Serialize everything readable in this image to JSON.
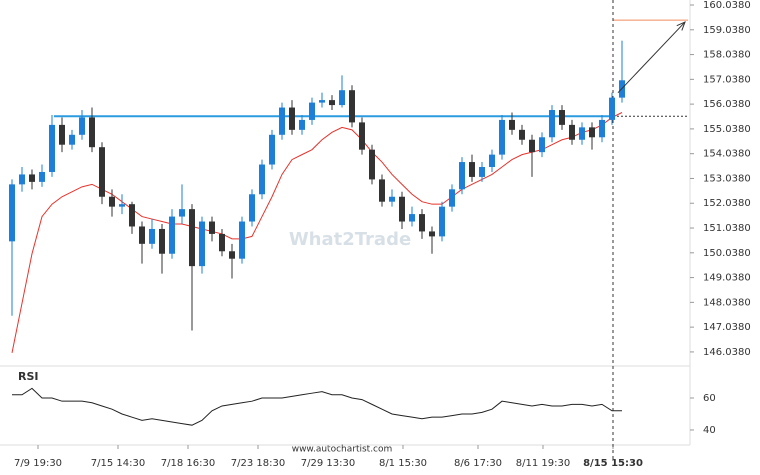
{
  "chart_data": {
    "type": "candlestick",
    "open": [
      150.5,
      152.8,
      153.2,
      152.9,
      153.3,
      155.2,
      154.4,
      154.8,
      155.5,
      154.3,
      152.3,
      151.9,
      152.0,
      151.1,
      150.4,
      151.0,
      150.0,
      151.5,
      151.8,
      149.5,
      151.3,
      150.8,
      150.1,
      149.8,
      151.3,
      152.4,
      153.6,
      154.8,
      155.9,
      155.0,
      155.4,
      156.1,
      156.2,
      156.0,
      156.6,
      155.3,
      154.2,
      153.0,
      152.1,
      152.3,
      151.3,
      151.6,
      150.9,
      150.7,
      151.9,
      152.6,
      153.7,
      153.1,
      153.5,
      154.0,
      155.4,
      155.0,
      154.6,
      154.1,
      154.7,
      155.8,
      155.2,
      154.6,
      155.1,
      154.7,
      155.4,
      156.3
    ],
    "high": [
      153.0,
      153.5,
      153.4,
      153.6,
      155.6,
      155.5,
      155.0,
      155.8,
      155.9,
      154.5,
      152.6,
      152.4,
      152.1,
      151.3,
      151.4,
      151.2,
      151.8,
      152.8,
      152.0,
      151.5,
      151.5,
      151.0,
      150.4,
      151.5,
      152.6,
      153.8,
      155.0,
      156.1,
      156.2,
      155.6,
      156.3,
      156.5,
      156.4,
      157.2,
      156.8,
      155.5,
      154.4,
      153.2,
      152.6,
      152.5,
      151.9,
      151.8,
      151.1,
      152.1,
      152.8,
      153.9,
      154.0,
      153.7,
      154.2,
      155.6,
      155.7,
      155.2,
      154.8,
      154.9,
      156.0,
      156.0,
      155.4,
      155.3,
      155.3,
      155.6,
      156.5,
      158.6
    ],
    "low": [
      147.5,
      152.5,
      152.6,
      152.7,
      153.1,
      154.1,
      154.2,
      154.6,
      154.1,
      152.0,
      151.5,
      151.6,
      150.8,
      149.6,
      150.2,
      149.2,
      149.8,
      151.2,
      146.9,
      149.2,
      150.5,
      149.9,
      149.0,
      149.6,
      151.1,
      152.2,
      153.4,
      154.6,
      154.8,
      154.8,
      155.2,
      155.9,
      155.8,
      155.9,
      155.1,
      154.0,
      152.8,
      151.9,
      151.9,
      151.0,
      151.1,
      150.6,
      150.0,
      150.5,
      151.7,
      152.4,
      152.9,
      152.9,
      153.3,
      153.8,
      154.8,
      154.4,
      153.1,
      153.9,
      154.5,
      155.0,
      154.4,
      154.4,
      154.2,
      154.5,
      155.2,
      156.1
    ],
    "close": [
      152.8,
      153.2,
      152.9,
      153.3,
      155.2,
      154.4,
      154.8,
      155.5,
      154.3,
      152.3,
      151.9,
      152.0,
      151.1,
      150.4,
      151.0,
      150.0,
      151.5,
      151.8,
      149.5,
      151.3,
      150.8,
      150.1,
      149.8,
      151.3,
      152.4,
      153.6,
      154.8,
      155.9,
      155.0,
      155.4,
      156.1,
      156.2,
      156.0,
      156.6,
      155.3,
      154.2,
      153.0,
      152.1,
      152.3,
      151.3,
      151.6,
      150.9,
      150.7,
      151.9,
      152.6,
      153.7,
      153.1,
      153.5,
      154.0,
      155.4,
      155.0,
      154.6,
      154.1,
      154.7,
      155.8,
      155.2,
      154.6,
      155.1,
      154.7,
      155.4,
      156.3,
      157.0
    ],
    "up_color": "#1e7fd8",
    "down_color": "#333333",
    "moving_average": {
      "color": "#e8322b",
      "values": [
        146.0,
        148.0,
        150.0,
        151.5,
        152.0,
        152.3,
        152.5,
        152.7,
        152.8,
        152.6,
        152.4,
        152.1,
        151.8,
        151.5,
        151.4,
        151.3,
        151.2,
        151.2,
        151.1,
        151.0,
        150.9,
        150.8,
        150.6,
        150.6,
        150.7,
        151.5,
        152.3,
        153.2,
        153.8,
        154.0,
        154.2,
        154.6,
        154.9,
        155.1,
        155.0,
        154.6,
        154.1,
        153.7,
        153.2,
        152.8,
        152.4,
        152.1,
        152.0,
        152.0,
        152.3,
        152.6,
        152.8,
        153.0,
        153.2,
        153.5,
        153.8,
        154.0,
        154.1,
        154.2,
        154.4,
        154.6,
        154.7,
        154.9,
        155.0,
        155.2,
        155.5,
        155.7
      ]
    },
    "resistance_level": 155.55,
    "resistance_color": "#2b9be0",
    "target_level": 159.43,
    "target_color": "#f08a5d",
    "breakout_x": 60.1,
    "arrow": {
      "from": [
        60.6,
        156.5
      ],
      "to": [
        67.3,
        159.35
      ]
    },
    "xlim": [
      -0.2,
      67.6
    ],
    "ylim": [
      145.51,
      160.24
    ],
    "yticks": [
      {
        "value": 160.038,
        "label": "160.0380"
      },
      {
        "value": 159.038,
        "label": "159.0380"
      },
      {
        "value": 158.038,
        "label": "158.0380"
      },
      {
        "value": 157.038,
        "label": "157.0380"
      },
      {
        "value": 156.038,
        "label": "156.0380"
      },
      {
        "value": 155.038,
        "label": "155.0380"
      },
      {
        "value": 154.038,
        "label": "154.0380"
      },
      {
        "value": 153.038,
        "label": "153.0380"
      },
      {
        "value": 152.038,
        "label": "152.0380"
      },
      {
        "value": 151.038,
        "label": "151.0380"
      },
      {
        "value": 150.038,
        "label": "150.0380"
      },
      {
        "value": 149.038,
        "label": "149.0380"
      },
      {
        "value": 148.038,
        "label": "148.0380"
      },
      {
        "value": 147.038,
        "label": "147.0380"
      },
      {
        "value": 146.038,
        "label": "146.0380"
      }
    ],
    "xticks": [
      {
        "value": 2.6,
        "label": "7/9 19:30"
      },
      {
        "value": 10.6,
        "label": "7/15 14:30"
      },
      {
        "value": 17.6,
        "label": "7/18 16:30"
      },
      {
        "value": 24.6,
        "label": "7/23 18:30"
      },
      {
        "value": 31.6,
        "label": "7/29 13:30"
      },
      {
        "value": 39.1,
        "label": "8/1 15:30"
      },
      {
        "value": 46.6,
        "label": "8/6 17:30"
      },
      {
        "value": 53.1,
        "label": "8/11 19:30"
      },
      {
        "value": 60.1,
        "label": "8/15 15:30"
      }
    ],
    "rsi": {
      "label": "RSI",
      "ylim": [
        30.6,
        77.5
      ],
      "yticks": [
        60,
        40
      ],
      "values": [
        62,
        62,
        66,
        60,
        60,
        58,
        58,
        58,
        57,
        55,
        53,
        50,
        48,
        46,
        47,
        46,
        45,
        44,
        43,
        46,
        52,
        55,
        56,
        57,
        58,
        60,
        60,
        60,
        61,
        62,
        63,
        64,
        62,
        62,
        60,
        59,
        56,
        53,
        50,
        49,
        48,
        47,
        48,
        48,
        49,
        50,
        50,
        51,
        53,
        58,
        57,
        56,
        55,
        56,
        55,
        55,
        56,
        56,
        55,
        56,
        52,
        52
      ]
    },
    "watermark": "What2Trade",
    "source": "www.autochartist.com"
  }
}
